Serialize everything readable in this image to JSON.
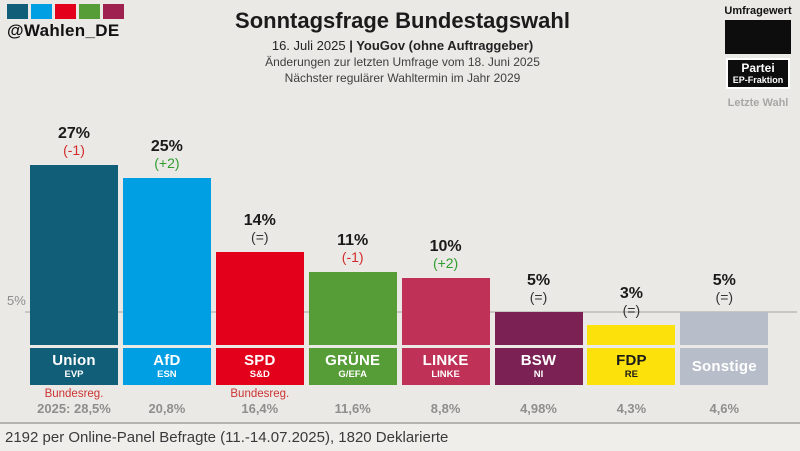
{
  "header": {
    "logo_handle": "@Wahlen_DE",
    "logo_colors": [
      "#115e79",
      "#009ee2",
      "#e2001a",
      "#569d37",
      "#9e2150"
    ],
    "title": "Sonntagsfrage Bundestagswahl",
    "subtitle_date": "16. Juli 2025 ",
    "subtitle_source": "| YouGov (ohne Auftraggeber)",
    "subtitle_line2": "Änderungen zur letzten Umfrage vom 18. Juni 2025",
    "subtitle_line3": "Nächster regulärer Wahltermin im Jahr 2029"
  },
  "legend": {
    "umfragewert_label": "Umfragewert",
    "partei_label": "Partei",
    "fraktion_label": "EP-Fraktion",
    "letzte_wahl_label": "Letzte Wahl"
  },
  "chart_data": {
    "type": "bar",
    "title": "Sonntagsfrage Bundestagswahl",
    "ylim": [
      0,
      30
    ],
    "threshold_line": {
      "label": "5%",
      "value": 5
    },
    "parties": [
      {
        "name": "Union",
        "group": "EVP",
        "value": 27,
        "change": "(-1)",
        "change_dir": "down",
        "color": "#115e79",
        "text_color": "#ffffff",
        "note": "Bundesreg.",
        "last": "2025: 28,5%"
      },
      {
        "name": "AfD",
        "group": "ESN",
        "value": 25,
        "change": "(+2)",
        "change_dir": "up",
        "color": "#009ee2",
        "text_color": "#ffffff",
        "note": "",
        "last": "20,8%"
      },
      {
        "name": "SPD",
        "group": "S&D",
        "value": 14,
        "change": "(=)",
        "change_dir": "same",
        "color": "#e2001a",
        "text_color": "#ffffff",
        "note": "Bundesreg.",
        "last": "16,4%"
      },
      {
        "name": "GRÜNE",
        "group": "G/EFA",
        "value": 11,
        "change": "(-1)",
        "change_dir": "down",
        "color": "#569d37",
        "text_color": "#ffffff",
        "note": "",
        "last": "11,6%"
      },
      {
        "name": "LINKE",
        "group": "LINKE",
        "value": 10,
        "change": "(+2)",
        "change_dir": "up",
        "color": "#bf3157",
        "text_color": "#ffffff",
        "note": "",
        "last": "8,8%"
      },
      {
        "name": "BSW",
        "group": "NI",
        "value": 5,
        "change": "(=)",
        "change_dir": "same",
        "color": "#7b2154",
        "text_color": "#ffffff",
        "note": "",
        "last": "4,98%"
      },
      {
        "name": "FDP",
        "group": "RE",
        "value": 3,
        "change": "(=)",
        "change_dir": "same",
        "color": "#fde10a",
        "text_color": "#1a1a1a",
        "note": "",
        "last": "4,3%"
      },
      {
        "name": "Sonstige",
        "group": "",
        "value": 5,
        "change": "(=)",
        "change_dir": "same",
        "color": "#b7bdc9",
        "text_color": "#ffffff",
        "note": "",
        "last": "4,6%"
      }
    ]
  },
  "colors": {
    "up": "#2f9e2f",
    "down": "#d22c2c",
    "same": "#333333"
  },
  "footer": {
    "text": "2192 per Online-Panel Befragte (11.-14.07.2025), 1820 Deklarierte"
  }
}
